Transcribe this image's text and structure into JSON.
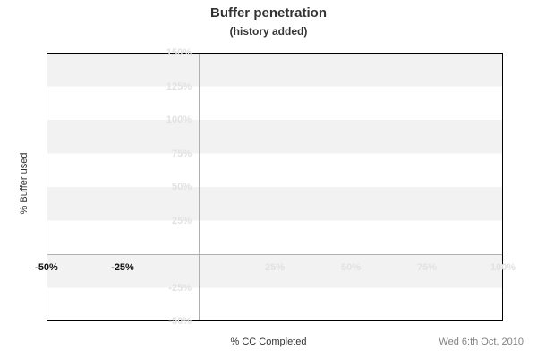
{
  "header": {
    "title": "Buffer penetration",
    "subtitle": "(history added)"
  },
  "footer": {
    "x_axis_title": "% CC Completed",
    "date": "Wed 6:th Oct, 2010"
  },
  "y_axis_title": "% Buffer used",
  "colors": {
    "band": "#f2f2f2",
    "background": "#ffffff",
    "faint_tick_label": "#e2e2e2",
    "emphasis_tick_label": "#111111",
    "zero_axis_line": "#b0b0b0",
    "plot_border": "#000000",
    "title_text": "#333333",
    "date_text": "#808080"
  },
  "chart_data": {
    "type": "line",
    "title": "Buffer penetration",
    "subtitle": "(history added)",
    "xlabel": "% CC Completed",
    "ylabel": "% Buffer used",
    "xlim": [
      -50,
      100
    ],
    "ylim": [
      -50,
      150
    ],
    "x_ticks": [
      {
        "value": -50,
        "label": "-50%",
        "emphasis": true
      },
      {
        "value": -25,
        "label": "-25%",
        "emphasis": true
      },
      {
        "value": 25,
        "label": "25%",
        "emphasis": false
      },
      {
        "value": 50,
        "label": "50%",
        "emphasis": false
      },
      {
        "value": 75,
        "label": "75%",
        "emphasis": false
      },
      {
        "value": 100,
        "label": "100%",
        "emphasis": false
      }
    ],
    "y_ticks": [
      {
        "value": 150,
        "label": "150%"
      },
      {
        "value": 125,
        "label": "125%"
      },
      {
        "value": 100,
        "label": "100%"
      },
      {
        "value": 75,
        "label": "75%"
      },
      {
        "value": 50,
        "label": "50%"
      },
      {
        "value": 25,
        "label": "25%"
      },
      {
        "value": -25,
        "label": "-25%"
      },
      {
        "value": -50,
        "label": "-50%"
      }
    ],
    "series": [],
    "grid": "alternating horizontal bands every 25%",
    "zero_axes_drawn": true,
    "legend": "none"
  }
}
